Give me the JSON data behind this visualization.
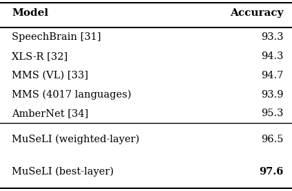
{
  "col_headers": [
    "Model",
    "Accuracy"
  ],
  "rows": [
    {
      "model": "SpeechBrain [31]",
      "accuracy": "93.3",
      "bold_acc": false
    },
    {
      "model": "XLS-R [32]",
      "accuracy": "94.3",
      "bold_acc": false
    },
    {
      "model": "MMS (VL) [33]",
      "accuracy": "94.7",
      "bold_acc": false
    },
    {
      "model": "MMS (4017 languages)",
      "accuracy": "93.9",
      "bold_acc": false
    },
    {
      "model": "AmberNet [34]",
      "accuracy": "95.3",
      "bold_acc": false
    },
    {
      "model": "MuSeLI (weighted-layer)",
      "accuracy": "96.5",
      "bold_acc": false
    },
    {
      "model": "MuSeLI (best-layer)",
      "accuracy": "97.6",
      "bold_acc": true
    }
  ],
  "bg_color": "#ffffff",
  "text_color": "#000000",
  "header_fontsize": 11,
  "body_fontsize": 10.5,
  "fig_width": 4.24,
  "fig_height": 2.78,
  "dpi": 100
}
